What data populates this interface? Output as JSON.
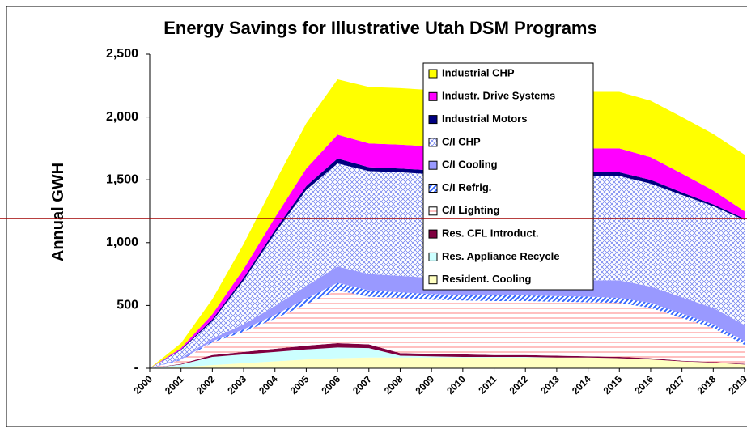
{
  "chart_data": {
    "type": "area",
    "stacked": true,
    "title": "Energy Savings for Illustrative Utah DSM Programs",
    "y_label": "Annual GWH",
    "categories": [
      "2000",
      "2001",
      "2002",
      "2003",
      "2004",
      "2005",
      "2006",
      "2007",
      "2008",
      "2009",
      "2010",
      "2011",
      "2012",
      "2013",
      "2014",
      "2015",
      "2016",
      "2017",
      "2018",
      "2019"
    ],
    "ylim": [
      0,
      2500
    ],
    "yticks": [
      {
        "value": 0,
        "label": "-"
      },
      500,
      {
        "value": 1000,
        "label": "1,000"
      },
      {
        "value": 1500,
        "label": "1,500"
      },
      {
        "value": 2000,
        "label": "2,000"
      },
      {
        "value": 2500,
        "label": "2,500"
      }
    ],
    "grid": false,
    "series": [
      {
        "name": "Resident. Cooling",
        "color": "#ffffc0",
        "values": [
          0,
          10,
          25,
          40,
          55,
          70,
          80,
          85,
          85,
          85,
          85,
          85,
          85,
          85,
          85,
          80,
          70,
          55,
          45,
          30
        ]
      },
      {
        "name": "Res. Appliance Recycle",
        "color": "#ccffff",
        "values": [
          0,
          20,
          65,
          70,
          75,
          80,
          85,
          75,
          15,
          10,
          5,
          5,
          5,
          0,
          0,
          0,
          0,
          0,
          0,
          0
        ]
      },
      {
        "name": "Res. CFL Introduct.",
        "color": "#800040",
        "values": [
          0,
          5,
          15,
          20,
          25,
          30,
          35,
          30,
          20,
          20,
          20,
          15,
          15,
          15,
          10,
          10,
          10,
          5,
          5,
          5
        ]
      },
      {
        "name": "C/I Lighting",
        "color": "#ff8080",
        "hatch": "horizontal",
        "values": [
          0,
          30,
          100,
          160,
          240,
          330,
          420,
          380,
          440,
          430,
          430,
          430,
          430,
          430,
          430,
          430,
          400,
          340,
          270,
          150
        ]
      },
      {
        "name": "C/I Refrig.",
        "color": "#3366ff",
        "hatch": "diagonal",
        "values": [
          0,
          5,
          10,
          20,
          30,
          45,
          60,
          50,
          45,
          45,
          45,
          45,
          45,
          45,
          45,
          40,
          40,
          35,
          30,
          30
        ]
      },
      {
        "name": "C/I Cooling",
        "color": "#9999ff",
        "values": [
          0,
          10,
          20,
          40,
          70,
          100,
          130,
          130,
          130,
          130,
          130,
          130,
          130,
          130,
          130,
          140,
          130,
          130,
          130,
          130
        ]
      },
      {
        "name": "C/I CHP",
        "color": "#6677ee",
        "hatch": "cross",
        "values": [
          0,
          65,
          140,
          350,
          580,
          765,
          820,
          820,
          825,
          825,
          825,
          825,
          825,
          825,
          830,
          830,
          820,
          815,
          810,
          835
        ]
      },
      {
        "name": "Industrial Motors",
        "color": "#000080",
        "values": [
          0,
          5,
          15,
          20,
          25,
          30,
          40,
          30,
          30,
          30,
          30,
          30,
          30,
          30,
          30,
          30,
          30,
          20,
          15,
          10
        ]
      },
      {
        "name": "Industr. Drive Systems",
        "color": "#ff00ff",
        "values": [
          0,
          10,
          40,
          70,
          100,
          140,
          190,
          190,
          190,
          190,
          190,
          190,
          190,
          190,
          190,
          190,
          180,
          150,
          110,
          60
        ]
      },
      {
        "name": "Industrial CHP",
        "color": "#ffff00",
        "values": [
          0,
          40,
          120,
          200,
          280,
          360,
          440,
          450,
          450,
          450,
          450,
          450,
          450,
          450,
          450,
          450,
          450,
          450,
          450,
          450
        ]
      }
    ]
  }
}
